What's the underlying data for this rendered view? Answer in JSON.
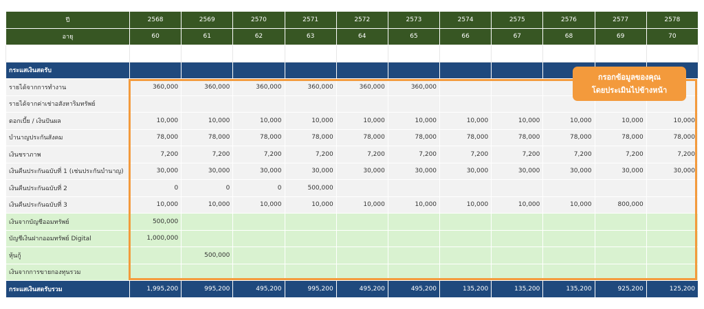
{
  "header": {
    "year_label": "ปี",
    "age_label": "อายุ",
    "years": [
      "2568",
      "2569",
      "2570",
      "2571",
      "2572",
      "2573",
      "2574",
      "2575",
      "2576",
      "2577",
      "2578"
    ],
    "ages": [
      "60",
      "61",
      "62",
      "63",
      "64",
      "65",
      "66",
      "67",
      "68",
      "69",
      "70"
    ]
  },
  "section_title": "กระแสเงินสดรับ",
  "income_rows": [
    {
      "label": "รายได้จากการทำงาน",
      "values": [
        "360,000",
        "360,000",
        "360,000",
        "360,000",
        "360,000",
        "360,000",
        "",
        "",
        "",
        "",
        ""
      ]
    },
    {
      "label": "รายได้จากค่าเช่าอสังหาริมทรัพย์",
      "values": [
        "",
        "",
        "",
        "",
        "",
        "",
        "",
        "",
        "",
        "",
        ""
      ]
    },
    {
      "label": "ดอกเบี้ย / เงินปันผล",
      "values": [
        "10,000",
        "10,000",
        "10,000",
        "10,000",
        "10,000",
        "10,000",
        "10,000",
        "10,000",
        "10,000",
        "10,000",
        "10,000"
      ]
    },
    {
      "label": "บำนาญประกันสังคม",
      "values": [
        "78,000",
        "78,000",
        "78,000",
        "78,000",
        "78,000",
        "78,000",
        "78,000",
        "78,000",
        "78,000",
        "78,000",
        "78,000"
      ]
    },
    {
      "label": "เงินชราภาพ",
      "values": [
        "7,200",
        "7,200",
        "7,200",
        "7,200",
        "7,200",
        "7,200",
        "7,200",
        "7,200",
        "7,200",
        "7,200",
        "7,200"
      ]
    },
    {
      "label": "เงินคืนประกันฉบับที่ 1 (เช่นประกันบำนาญ)",
      "values": [
        "30,000",
        "30,000",
        "30,000",
        "30,000",
        "30,000",
        "30,000",
        "30,000",
        "30,000",
        "30,000",
        "30,000",
        "30,000"
      ]
    },
    {
      "label": "เงินคืนประกันฉบับที่ 2",
      "values": [
        "0",
        "0",
        "0",
        "500,000",
        "",
        "",
        "",
        "",
        "",
        "",
        ""
      ]
    },
    {
      "label": "เงินคืนประกันฉบับที่ 3",
      "values": [
        "10,000",
        "10,000",
        "10,000",
        "10,000",
        "10,000",
        "10,000",
        "10,000",
        "10,000",
        "10,000",
        "800,000",
        ""
      ]
    }
  ],
  "asset_rows": [
    {
      "label": "เงินจากบัญชีออมทรัพย์",
      "values": [
        "500,000",
        "",
        "",
        "",
        "",
        "",
        "",
        "",
        "",
        "",
        ""
      ]
    },
    {
      "label": "บัญชีเงินฝากออมทรัพย์ Digital",
      "values": [
        "1,000,000",
        "",
        "",
        "",
        "",
        "",
        "",
        "",
        "",
        "",
        ""
      ]
    },
    {
      "label": "หุ้นกู้",
      "values": [
        "",
        "500,000",
        "",
        "",
        "",
        "",
        "",
        "",
        "",
        "",
        ""
      ]
    },
    {
      "label": "เงินจากการขายกองทุนรวม",
      "values": [
        "",
        "",
        "",
        "",
        "",
        "",
        "",
        "",
        "",
        "",
        ""
      ]
    }
  ],
  "total": {
    "label": "กระแสเงินสดรับรวม",
    "values": [
      "1,995,200",
      "995,200",
      "495,200",
      "995,200",
      "495,200",
      "495,200",
      "135,200",
      "135,200",
      "135,200",
      "925,200",
      "125,200"
    ]
  },
  "callout": {
    "line1": "กรอกข้อมูลของคุณ",
    "line2": "โดยประเมินไปข้างหน้า"
  },
  "colors": {
    "header_green": "#375623",
    "section_blue": "#1f497d",
    "asset_green": "#d9f2d0",
    "row_grey": "#f2f2f2",
    "accent_orange": "#f39a3c"
  }
}
